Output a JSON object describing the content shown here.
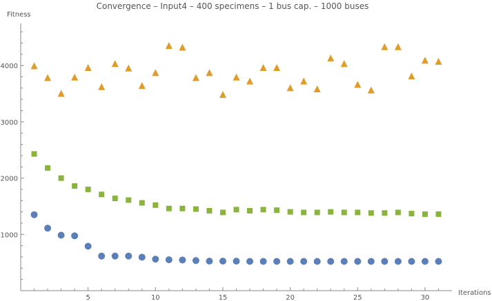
{
  "chart_data": {
    "type": "scatter",
    "title": "Convergence – Input4 – 400 specimens – 1 bus cap. – 1000 buses",
    "xlabel": "Iterations",
    "ylabel": "Fitness",
    "xlim": [
      0,
      32
    ],
    "ylim": [
      0,
      4700
    ],
    "x_ticks": [
      5,
      10,
      15,
      20,
      25,
      30
    ],
    "y_ticks": [
      1000,
      2000,
      3000,
      4000
    ],
    "x_minor_step": 1,
    "y_minor_step": 200,
    "grid": false,
    "legend": "none",
    "x": [
      1,
      2,
      3,
      4,
      5,
      6,
      7,
      8,
      9,
      10,
      11,
      12,
      13,
      14,
      15,
      16,
      17,
      18,
      19,
      20,
      21,
      22,
      23,
      24,
      25,
      26,
      27,
      28,
      29,
      30,
      31
    ],
    "series": [
      {
        "marker": "circle",
        "color": "#5b7fb8",
        "values": [
          1350,
          1110,
          985,
          975,
          790,
          615,
          615,
          615,
          595,
          560,
          550,
          545,
          535,
          525,
          525,
          525,
          520,
          520,
          520,
          520,
          520,
          520,
          520,
          520,
          520,
          520,
          520,
          520,
          520,
          520,
          520
        ]
      },
      {
        "marker": "square",
        "color": "#8ab43e",
        "values": [
          2430,
          2180,
          2000,
          1860,
          1800,
          1710,
          1640,
          1610,
          1560,
          1520,
          1460,
          1460,
          1450,
          1420,
          1390,
          1440,
          1420,
          1440,
          1430,
          1400,
          1390,
          1390,
          1400,
          1390,
          1390,
          1380,
          1380,
          1390,
          1370,
          1360,
          1360
        ]
      },
      {
        "marker": "triangle",
        "color": "#e09b29",
        "values": [
          3990,
          3780,
          3500,
          3790,
          3960,
          3620,
          4030,
          3950,
          3640,
          3870,
          4350,
          4320,
          3780,
          3870,
          3480,
          3790,
          3720,
          3960,
          3960,
          3600,
          3720,
          3580,
          4130,
          4030,
          3660,
          3560,
          4330,
          4330,
          3810,
          4090,
          4070
        ]
      }
    ]
  }
}
